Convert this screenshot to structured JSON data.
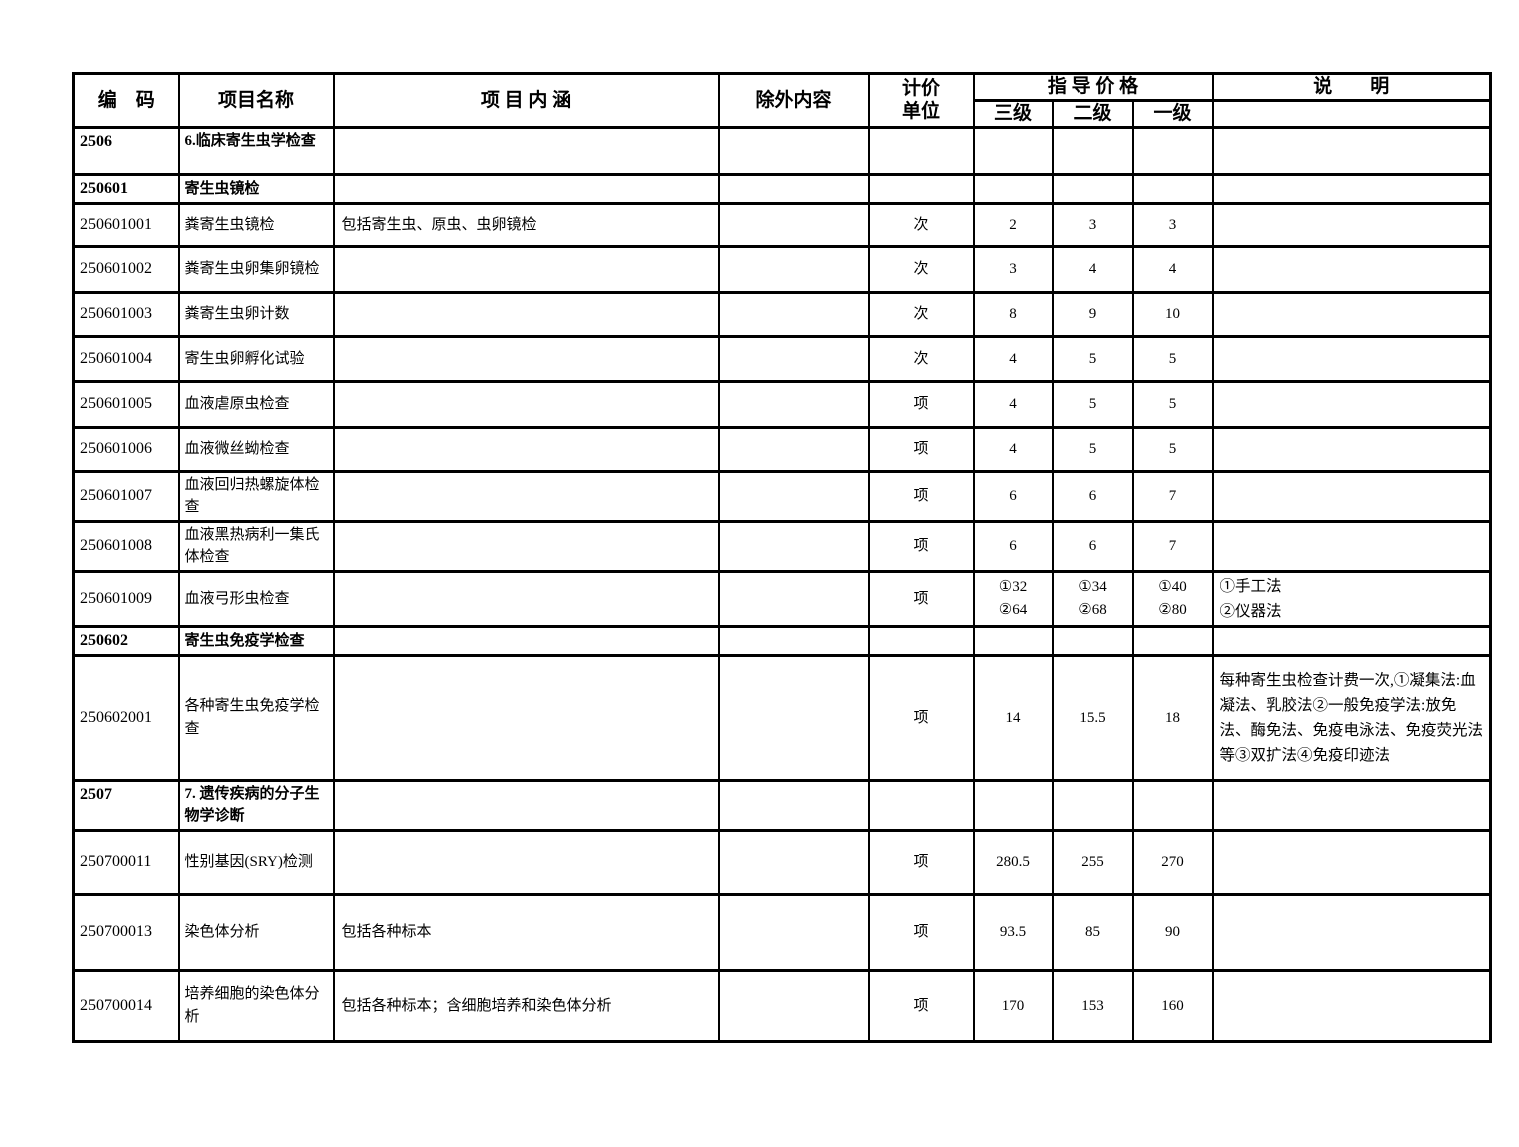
{
  "table": {
    "headers": {
      "code": "编　码",
      "name": "项目名称",
      "content": "项 目 内 涵",
      "excluded": "除外内容",
      "unit_line1": "计价",
      "unit_line2": "单位",
      "price_group": "指 导 价 格",
      "price_l3": "三级",
      "price_l2": "二级",
      "price_l1": "一级",
      "note": "说　　明"
    },
    "rows": [
      {
        "code": "2506",
        "name": "6.临床寄生虫学检查",
        "content": "",
        "excluded": "",
        "unit": "",
        "p3": "",
        "p2": "",
        "p1": "",
        "note": ""
      },
      {
        "code": "250601",
        "name": "寄生虫镜检",
        "content": "",
        "excluded": "",
        "unit": "",
        "p3": "",
        "p2": "",
        "p1": "",
        "note": ""
      },
      {
        "code": "250601001",
        "name": "粪寄生虫镜检",
        "content": "包括寄生虫、原虫、虫卵镜检",
        "excluded": "",
        "unit": "次",
        "p3": "2",
        "p2": "3",
        "p1": "3",
        "note": ""
      },
      {
        "code": "250601002",
        "name": "粪寄生虫卵集卵镜检",
        "content": "",
        "excluded": "",
        "unit": "次",
        "p3": "3",
        "p2": "4",
        "p1": "4",
        "note": ""
      },
      {
        "code": "250601003",
        "name": "粪寄生虫卵计数",
        "content": "",
        "excluded": "",
        "unit": "次",
        "p3": "8",
        "p2": "9",
        "p1": "10",
        "note": ""
      },
      {
        "code": "250601004",
        "name": "寄生虫卵孵化试验",
        "content": "",
        "excluded": "",
        "unit": "次",
        "p3": "4",
        "p2": "5",
        "p1": "5",
        "note": ""
      },
      {
        "code": "250601005",
        "name": "血液虐原虫检查",
        "content": "",
        "excluded": "",
        "unit": "项",
        "p3": "4",
        "p2": "5",
        "p1": "5",
        "note": ""
      },
      {
        "code": "250601006",
        "name": "血液微丝蚴检查",
        "content": "",
        "excluded": "",
        "unit": "项",
        "p3": "4",
        "p2": "5",
        "p1": "5",
        "note": ""
      },
      {
        "code": "250601007",
        "name": "血液回归热螺旋体检查",
        "content": "",
        "excluded": "",
        "unit": "项",
        "p3": "6",
        "p2": "6",
        "p1": "7",
        "note": ""
      },
      {
        "code": "250601008",
        "name": "血液黑热病利一集氏体检查",
        "content": "",
        "excluded": "",
        "unit": "项",
        "p3": "6",
        "p2": "6",
        "p1": "7",
        "note": ""
      },
      {
        "code": "250601009",
        "name": "血液弓形虫检查",
        "content": "",
        "excluded": "",
        "unit": "项",
        "p3": "①32\n②64",
        "p2": "①34\n②68",
        "p1": "①40\n②80",
        "note": "①手工法\n②仪器法"
      },
      {
        "code": "250602",
        "name": "寄生虫免疫学检查",
        "content": "",
        "excluded": "",
        "unit": "",
        "p3": "",
        "p2": "",
        "p1": "",
        "note": ""
      },
      {
        "code": "250602001",
        "name": "各种寄生虫免疫学检查",
        "content": "",
        "excluded": "",
        "unit": "项",
        "p3": "14",
        "p2": "15.5",
        "p1": "18",
        "note": "每种寄生虫检查计费一次,①凝集法:血凝法、乳胶法②一般免疫学法:放免法、酶免法、免疫电泳法、免疫荧光法等③双扩法④免疫印迹法"
      },
      {
        "code": "2507",
        "name": "7. 遗传疾病的分子生物学诊断",
        "content": "",
        "excluded": "",
        "unit": "",
        "p3": "",
        "p2": "",
        "p1": "",
        "note": ""
      },
      {
        "code": "250700011",
        "name": "性别基因(SRY)检测",
        "content": "",
        "excluded": "",
        "unit": "项",
        "p3": "280.5",
        "p2": "255",
        "p1": "270",
        "note": ""
      },
      {
        "code": "250700013",
        "name": "染色体分析",
        "content": "包括各种标本",
        "excluded": "",
        "unit": "项",
        "p3": "93.5",
        "p2": "85",
        "p1": "90",
        "note": ""
      },
      {
        "code": "250700014",
        "name": "培养细胞的染色体分析",
        "content": "包括各种标本；含细胞培养和染色体分析",
        "excluded": "",
        "unit": "项",
        "p3": "170",
        "p2": "153",
        "p1": "160",
        "note": ""
      }
    ]
  }
}
